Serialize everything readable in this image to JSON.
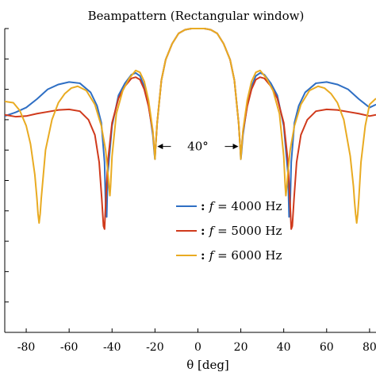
{
  "chart_data": {
    "type": "line",
    "title": "Beampattern (Rectangular window)",
    "xlabel": "θ [deg]",
    "ylabel": "",
    "xlim": [
      -90,
      83
    ],
    "xticks": [
      -80,
      -60,
      -40,
      -20,
      0,
      20,
      40,
      60,
      80
    ],
    "xtick_labels": [
      "-80",
      "-60",
      "-40",
      "-20",
      "0",
      "20",
      "40",
      "60",
      "80"
    ],
    "ylim": [
      -50,
      0
    ],
    "yticks": [
      0,
      -5,
      -10,
      -15,
      -20,
      -25,
      -30,
      -35,
      -40,
      -45,
      -50
    ],
    "ytick_labels_visible": false,
    "grid": false,
    "legend_position": "center-right",
    "annotation": {
      "text": "40°",
      "from_x": -20,
      "to_x": 20,
      "y": -19.4
    },
    "series": [
      {
        "name": "f = 4000 Hz",
        "legend_prefix": ":",
        "legend_var": "f",
        "legend_eq": " = 4000 Hz",
        "color": "#2f6fc4",
        "x": [
          -90,
          -85,
          -80,
          -75,
          -70,
          -65,
          -60,
          -55,
          -50,
          -47,
          -45,
          -43.5,
          -43,
          -42.5,
          -42,
          -40,
          -37,
          -34,
          -31,
          -29,
          -27,
          -25,
          -23,
          -21,
          -20.3,
          -20,
          -19.7,
          -19,
          -17,
          -15,
          -12,
          -9,
          -6,
          -3,
          0,
          3,
          6,
          9,
          12,
          15,
          17,
          19,
          19.7,
          20,
          20.3,
          21,
          23,
          25,
          27,
          29,
          31,
          34,
          37,
          40,
          42,
          42.5,
          43,
          43.5,
          45,
          47,
          50,
          55,
          60,
          65,
          70,
          75,
          80,
          83
        ],
        "y": [
          -14.4,
          -13.8,
          -13.0,
          -11.6,
          -10.0,
          -9.2,
          -8.8,
          -9.0,
          -10.5,
          -12.7,
          -15.5,
          -22.0,
          -29.0,
          -31.0,
          -24.0,
          -16.0,
          -11.0,
          -9.0,
          -7.6,
          -7.3,
          -7.8,
          -9.5,
          -12.5,
          -17.5,
          -20.5,
          -21.5,
          -19.5,
          -15.6,
          -8.5,
          -5.1,
          -2.5,
          -0.8,
          -0.2,
          0.0,
          0.0,
          0.0,
          -0.2,
          -0.8,
          -2.5,
          -5.1,
          -8.5,
          -15.6,
          -19.5,
          -21.5,
          -20.5,
          -17.5,
          -12.5,
          -9.5,
          -7.8,
          -7.3,
          -7.6,
          -9.0,
          -11.0,
          -16.0,
          -24.0,
          -31.0,
          -29.0,
          -22.0,
          -15.5,
          -12.7,
          -10.5,
          -9.0,
          -8.8,
          -9.2,
          -10.0,
          -11.6,
          -13.0,
          -12.5
        ]
      },
      {
        "name": "f = 5000 Hz",
        "legend_prefix": ":",
        "legend_var": "f",
        "legend_eq": " = 5000 Hz",
        "color": "#d03a1c",
        "x": [
          -90,
          -85,
          -80,
          -75,
          -70,
          -65,
          -60,
          -55,
          -51,
          -48,
          -46,
          -44.8,
          -44,
          -43.5,
          -43,
          -42,
          -40,
          -37,
          -34,
          -31,
          -29,
          -27,
          -25,
          -23,
          -21,
          -20.3,
          -20,
          -19.7,
          -19,
          -17,
          -15,
          -12,
          -9,
          -6,
          -3,
          0,
          3,
          6,
          9,
          12,
          15,
          17,
          19,
          19.7,
          20,
          20.3,
          21,
          23,
          25,
          27,
          29,
          31,
          34,
          37,
          40,
          42,
          43,
          43.5,
          44,
          44.8,
          46,
          48,
          51,
          55,
          60,
          65,
          70,
          75,
          80,
          83
        ],
        "y": [
          -14.2,
          -14.5,
          -14.4,
          -14.0,
          -13.7,
          -13.4,
          -13.3,
          -13.6,
          -15.0,
          -17.5,
          -22.0,
          -28.0,
          -32.5,
          -33.0,
          -29.0,
          -22.0,
          -15.5,
          -11.5,
          -9.5,
          -8.2,
          -8.0,
          -8.4,
          -10.0,
          -12.8,
          -17.0,
          -20.0,
          -21.0,
          -19.5,
          -15.6,
          -8.5,
          -5.1,
          -2.5,
          -0.8,
          -0.2,
          0.0,
          0.0,
          0.0,
          -0.2,
          -0.8,
          -2.5,
          -5.1,
          -8.5,
          -15.6,
          -19.5,
          -21.0,
          -20.0,
          -17.0,
          -12.8,
          -10.0,
          -8.4,
          -8.0,
          -8.2,
          -9.5,
          -11.5,
          -15.5,
          -22.0,
          -29.0,
          -33.0,
          -32.5,
          -28.0,
          -22.0,
          -17.5,
          -15.0,
          -13.6,
          -13.3,
          -13.4,
          -13.7,
          -14.0,
          -14.4,
          -14.2
        ]
      },
      {
        "name": "f = 6000 Hz",
        "legend_prefix": ":",
        "legend_var": "f",
        "legend_eq": " = 6000 Hz",
        "color": "#e9ab22",
        "x": [
          -90,
          -86,
          -83,
          -80,
          -78,
          -76,
          -75,
          -74.5,
          -74,
          -73.5,
          -73,
          -71,
          -68,
          -65,
          -62,
          -59,
          -56,
          -52,
          -48,
          -45,
          -43,
          -42,
          -41.3,
          -41,
          -40.7,
          -40,
          -38,
          -35,
          -32,
          -29,
          -27,
          -25,
          -23,
          -21,
          -20.3,
          -20,
          -19.7,
          -19,
          -17,
          -15,
          -12,
          -9,
          -6,
          -3,
          0,
          3,
          6,
          9,
          12,
          15,
          17,
          19,
          19.7,
          20,
          20.3,
          21,
          23,
          25,
          27,
          29,
          32,
          35,
          38,
          40,
          40.7,
          41,
          41.3,
          42,
          43,
          45,
          48,
          52,
          56,
          59,
          62,
          65,
          68,
          71,
          72.5,
          73,
          73.5,
          74,
          74.5,
          75,
          76,
          78,
          80,
          83
        ],
        "y": [
          -12.0,
          -12.2,
          -13.5,
          -16.0,
          -19.0,
          -24.0,
          -28.0,
          -30.5,
          -32.0,
          -30.5,
          -28.0,
          -20.0,
          -15.0,
          -12.2,
          -10.7,
          -9.8,
          -9.5,
          -10.2,
          -12.5,
          -16.0,
          -20.0,
          -23.5,
          -26.5,
          -27.5,
          -26.0,
          -21.0,
          -14.0,
          -10.2,
          -8.2,
          -6.9,
          -7.2,
          -8.7,
          -11.8,
          -16.8,
          -20.0,
          -21.5,
          -19.5,
          -15.6,
          -8.5,
          -5.1,
          -2.5,
          -0.8,
          -0.2,
          0.0,
          0.0,
          0.0,
          -0.2,
          -0.8,
          -2.5,
          -5.1,
          -8.5,
          -15.6,
          -19.5,
          -21.5,
          -20.0,
          -16.8,
          -11.8,
          -8.7,
          -7.2,
          -6.9,
          -8.2,
          -10.2,
          -14.0,
          -21.0,
          -26.0,
          -27.5,
          -26.5,
          -23.5,
          -20.0,
          -16.0,
          -12.5,
          -10.2,
          -9.5,
          -9.8,
          -10.7,
          -12.2,
          -15.0,
          -21.0,
          -26.0,
          -28.5,
          -30.5,
          -32.0,
          -30.5,
          -28.0,
          -22.0,
          -16.0,
          -12.5,
          -11.5
        ]
      }
    ]
  }
}
